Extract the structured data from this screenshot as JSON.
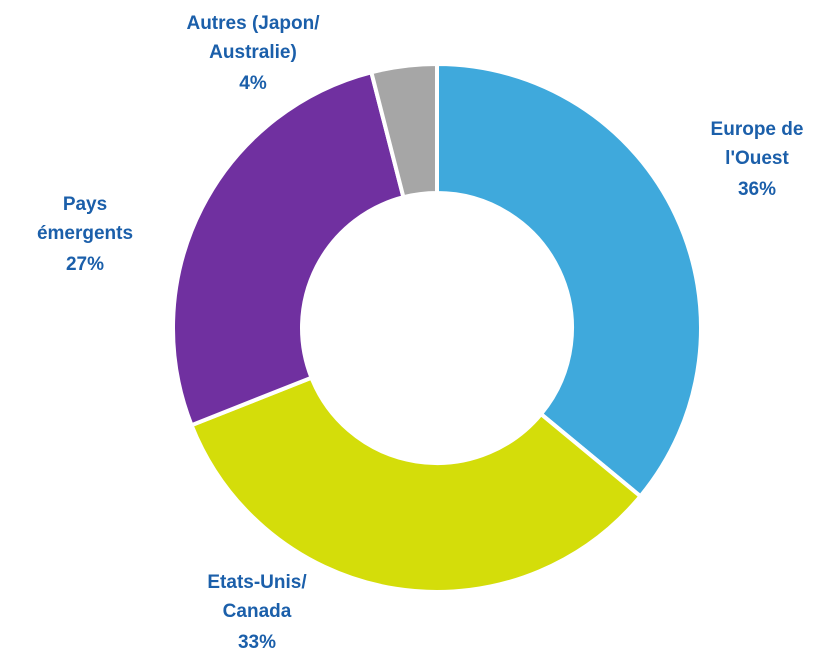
{
  "chart_data": {
    "type": "donut",
    "categories": [
      [
        "Europe de",
        "l'Ouest"
      ],
      [
        "Etats-Unis/",
        "Canada"
      ],
      [
        "Pays",
        "émergents"
      ],
      [
        "Autres (Japon/",
        "Australie)"
      ]
    ],
    "values": [
      36,
      33,
      27,
      4
    ],
    "value_labels": [
      "36%",
      "33%",
      "27%",
      "4%"
    ],
    "colors": [
      "#3fa9dc",
      "#d4dd0a",
      "#7030a0",
      "#a6a6a6"
    ]
  }
}
